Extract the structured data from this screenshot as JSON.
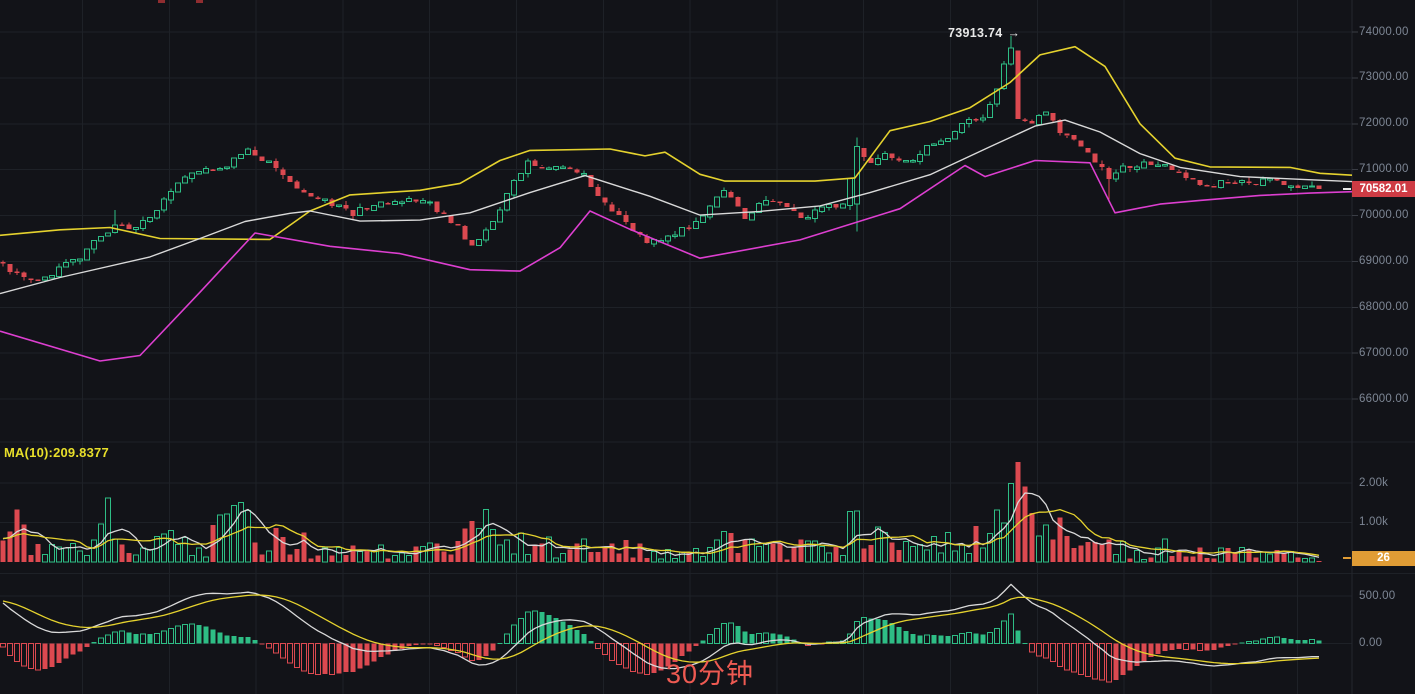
{
  "app": {
    "background": "#121318"
  },
  "colors": {
    "background": "#121318",
    "grid": "#1e2127",
    "axis_border": "#24272e",
    "axis_text": "#7d8694",
    "candle_up": "#2ebd85",
    "candle_down": "#dc4950",
    "band_upper_yellow": "#e5d22e",
    "band_middle_white": "#d9d9d9",
    "band_lower_magenta": "#dd3fd0",
    "price_badge_red": "#ce3b44",
    "volume_badge_orange": "#e09c35",
    "ma_label_yellow": "#e8df2a",
    "annotation_white": "#e9e9e9",
    "toast_red": "#ee5a52",
    "macd_dif_white": "#d9d9d9",
    "macd_dea_yellow": "#e5d22e"
  },
  "axes": {
    "price": {
      "ticks": [
        {
          "label": "74000.00",
          "value": 74000
        },
        {
          "label": "73000.00",
          "value": 73000
        },
        {
          "label": "72000.00",
          "value": 72000
        },
        {
          "label": "71000.00",
          "value": 71000
        },
        {
          "label": "70000.00",
          "value": 70000
        },
        {
          "label": "69000.00",
          "value": 69000
        },
        {
          "label": "68000.00",
          "value": 68000
        },
        {
          "label": "67000.00",
          "value": 67000
        },
        {
          "label": "66000.00",
          "value": 66000
        }
      ]
    },
    "volume": {
      "ticks": [
        {
          "label": "2.00k",
          "value": 2000
        },
        {
          "label": "1.00k",
          "value": 1000
        }
      ]
    },
    "macd": {
      "ticks": [
        {
          "label": "500.00",
          "value": 500
        },
        {
          "label": "0.00",
          "value": 0
        }
      ]
    }
  },
  "badges": {
    "last_price": "70582.01",
    "last_volume": "26"
  },
  "annotations": {
    "high_value": "73913.74",
    "arrow": "→"
  },
  "indicators": {
    "volume_ma_label": "MA(10):209.8377"
  },
  "toast": {
    "text": "30分钟"
  },
  "chart_data": [
    {
      "type": "candlestick",
      "name": "btc-price-with-bollinger-bands",
      "candle_count": 189,
      "last_close": 70582.01,
      "high_annotation": {
        "index": 144,
        "price": 73913.74
      },
      "close_anchors": [
        [
          0,
          68950
        ],
        [
          2,
          68750
        ],
        [
          4,
          68620
        ],
        [
          7,
          68780
        ],
        [
          11,
          69120
        ],
        [
          13,
          69500
        ],
        [
          16,
          69820
        ],
        [
          19,
          69720
        ],
        [
          22,
          70150
        ],
        [
          25,
          70750
        ],
        [
          28,
          71000
        ],
        [
          32,
          71150
        ],
        [
          35,
          71450
        ],
        [
          38,
          71200
        ],
        [
          42,
          70600
        ],
        [
          46,
          70350
        ],
        [
          50,
          70100
        ],
        [
          53,
          70300
        ],
        [
          57,
          70360
        ],
        [
          61,
          70290
        ],
        [
          65,
          69820
        ],
        [
          67,
          69350
        ],
        [
          70,
          69900
        ],
        [
          73,
          70800
        ],
        [
          75,
          71250
        ],
        [
          78,
          71050
        ],
        [
          81,
          71120
        ],
        [
          83,
          70950
        ],
        [
          86,
          70250
        ],
        [
          89,
          69850
        ],
        [
          92,
          69400
        ],
        [
          95,
          69560
        ],
        [
          98,
          69800
        ],
        [
          101,
          70200
        ],
        [
          103,
          70550
        ],
        [
          106,
          70020
        ],
        [
          108,
          70300
        ],
        [
          111,
          70360
        ],
        [
          114,
          69960
        ],
        [
          117,
          70250
        ],
        [
          120,
          70220
        ],
        [
          122,
          71500
        ],
        [
          124,
          71150
        ],
        [
          126,
          71350
        ],
        [
          129,
          71200
        ],
        [
          132,
          71500
        ],
        [
          134,
          71650
        ],
        [
          136,
          71850
        ],
        [
          138,
          72100
        ],
        [
          140,
          72200
        ],
        [
          142,
          72750
        ],
        [
          143,
          73300
        ],
        [
          144,
          73650
        ],
        [
          145,
          72100
        ],
        [
          147,
          72050
        ],
        [
          149,
          72320
        ],
        [
          151,
          71900
        ],
        [
          153,
          71650
        ],
        [
          155,
          71350
        ],
        [
          158,
          70900
        ],
        [
          160,
          71050
        ],
        [
          163,
          71160
        ],
        [
          166,
          71100
        ],
        [
          169,
          70850
        ],
        [
          172,
          70700
        ],
        [
          175,
          70800
        ],
        [
          178,
          70760
        ],
        [
          181,
          70830
        ],
        [
          184,
          70700
        ],
        [
          186,
          70650
        ],
        [
          188,
          70582.01
        ]
      ],
      "pinned_close_indices": [
        0,
        35,
        67,
        92,
        122,
        143,
        144,
        145,
        188
      ],
      "special_candles": {
        "16": {
          "high_extra": 360
        },
        "122": {
          "open": 70250,
          "low": 69650,
          "high": 71700
        },
        "144": {
          "high": 73913.74
        },
        "145": {
          "open": 73600
        },
        "158": {
          "low": 70350
        }
      },
      "bands": {
        "upper_anchors": [
          [
            0,
            69570
          ],
          [
            60,
            69690
          ],
          [
            110,
            69740
          ],
          [
            160,
            69500
          ],
          [
            270,
            69480
          ],
          [
            310,
            70100
          ],
          [
            350,
            70450
          ],
          [
            420,
            70550
          ],
          [
            460,
            70700
          ],
          [
            500,
            71200
          ],
          [
            530,
            71420
          ],
          [
            610,
            71450
          ],
          [
            645,
            71300
          ],
          [
            665,
            71380
          ],
          [
            700,
            70900
          ],
          [
            725,
            70750
          ],
          [
            815,
            70750
          ],
          [
            855,
            70820
          ],
          [
            890,
            71850
          ],
          [
            930,
            72050
          ],
          [
            970,
            72350
          ],
          [
            1010,
            72900
          ],
          [
            1040,
            73500
          ],
          [
            1075,
            73680
          ],
          [
            1105,
            73250
          ],
          [
            1140,
            72000
          ],
          [
            1175,
            71250
          ],
          [
            1210,
            71060
          ],
          [
            1290,
            71050
          ],
          [
            1320,
            70920
          ],
          [
            1352,
            70880
          ]
        ],
        "middle_anchors": [
          [
            0,
            68300
          ],
          [
            60,
            68650
          ],
          [
            150,
            69100
          ],
          [
            200,
            69500
          ],
          [
            245,
            69870
          ],
          [
            290,
            70050
          ],
          [
            310,
            70100
          ],
          [
            360,
            69880
          ],
          [
            420,
            69900
          ],
          [
            470,
            70060
          ],
          [
            530,
            70500
          ],
          [
            585,
            70870
          ],
          [
            650,
            70420
          ],
          [
            700,
            70010
          ],
          [
            760,
            70090
          ],
          [
            820,
            70210
          ],
          [
            870,
            70500
          ],
          [
            930,
            70890
          ],
          [
            990,
            71500
          ],
          [
            1035,
            71950
          ],
          [
            1065,
            72080
          ],
          [
            1100,
            71820
          ],
          [
            1140,
            71350
          ],
          [
            1180,
            71050
          ],
          [
            1240,
            70850
          ],
          [
            1300,
            70790
          ],
          [
            1352,
            70740
          ]
        ],
        "lower_anchors": [
          [
            0,
            67480
          ],
          [
            100,
            66830
          ],
          [
            140,
            66950
          ],
          [
            200,
            68330
          ],
          [
            255,
            69620
          ],
          [
            330,
            69330
          ],
          [
            400,
            69170
          ],
          [
            470,
            68820
          ],
          [
            520,
            68790
          ],
          [
            560,
            69300
          ],
          [
            590,
            70100
          ],
          [
            630,
            69700
          ],
          [
            700,
            69070
          ],
          [
            800,
            69470
          ],
          [
            900,
            70150
          ],
          [
            965,
            71090
          ],
          [
            985,
            70850
          ],
          [
            1035,
            71200
          ],
          [
            1090,
            71150
          ],
          [
            1115,
            70060
          ],
          [
            1160,
            70250
          ],
          [
            1200,
            70330
          ],
          [
            1260,
            70440
          ],
          [
            1310,
            70490
          ],
          [
            1352,
            70520
          ]
        ]
      },
      "y_axis_visible_ticks": [
        74000,
        73000,
        72000,
        71000,
        70000,
        69000,
        68000,
        67000,
        66000
      ]
    },
    {
      "type": "bar",
      "name": "volume",
      "last_value": 26,
      "ma_periods": [
        5,
        10
      ],
      "ma10_last": 209.8377,
      "volume_anchors": [
        [
          0,
          600
        ],
        [
          2,
          1050
        ],
        [
          5,
          420
        ],
        [
          8,
          340
        ],
        [
          12,
          520
        ],
        [
          13,
          830
        ],
        [
          15,
          1620
        ],
        [
          17,
          420
        ],
        [
          20,
          380
        ],
        [
          24,
          660
        ],
        [
          28,
          520
        ],
        [
          32,
          1260
        ],
        [
          34,
          1360
        ],
        [
          37,
          540
        ],
        [
          40,
          1190
        ],
        [
          44,
          420
        ],
        [
          48,
          380
        ],
        [
          52,
          360
        ],
        [
          56,
          430
        ],
        [
          60,
          340
        ],
        [
          64,
          520
        ],
        [
          67,
          820
        ],
        [
          69,
          1700
        ],
        [
          72,
          920
        ],
        [
          75,
          700
        ],
        [
          79,
          450
        ],
        [
          83,
          620
        ],
        [
          87,
          500
        ],
        [
          91,
          400
        ],
        [
          95,
          340
        ],
        [
          99,
          430
        ],
        [
          103,
          720
        ],
        [
          107,
          460
        ],
        [
          111,
          380
        ],
        [
          115,
          560
        ],
        [
          119,
          400
        ],
        [
          122,
          1500
        ],
        [
          124,
          820
        ],
        [
          128,
          500
        ],
        [
          132,
          600
        ],
        [
          135,
          720
        ],
        [
          138,
          950
        ],
        [
          141,
          1400
        ],
        [
          143,
          1950
        ],
        [
          144,
          2100
        ],
        [
          145,
          2530
        ],
        [
          146,
          1500
        ],
        [
          148,
          1150
        ],
        [
          151,
          900
        ],
        [
          154,
          620
        ],
        [
          157,
          820
        ],
        [
          160,
          500
        ],
        [
          163,
          420
        ],
        [
          166,
          470
        ],
        [
          169,
          360
        ],
        [
          172,
          300
        ],
        [
          175,
          360
        ],
        [
          178,
          280
        ],
        [
          181,
          310
        ],
        [
          184,
          260
        ],
        [
          186,
          210
        ],
        [
          188,
          26
        ]
      ],
      "pinned_volumes": {
        "15": 1620,
        "145": 2530,
        "188": 26
      },
      "y_axis_visible_ticks": [
        2000,
        1000
      ]
    },
    {
      "type": "macd",
      "name": "macd-12-26-9",
      "fast": 12,
      "slow": 26,
      "signal": 9,
      "hist_scale": 2,
      "dif_start": 480,
      "dea_start": 452,
      "y_axis_visible_ticks": [
        500,
        0
      ]
    }
  ]
}
